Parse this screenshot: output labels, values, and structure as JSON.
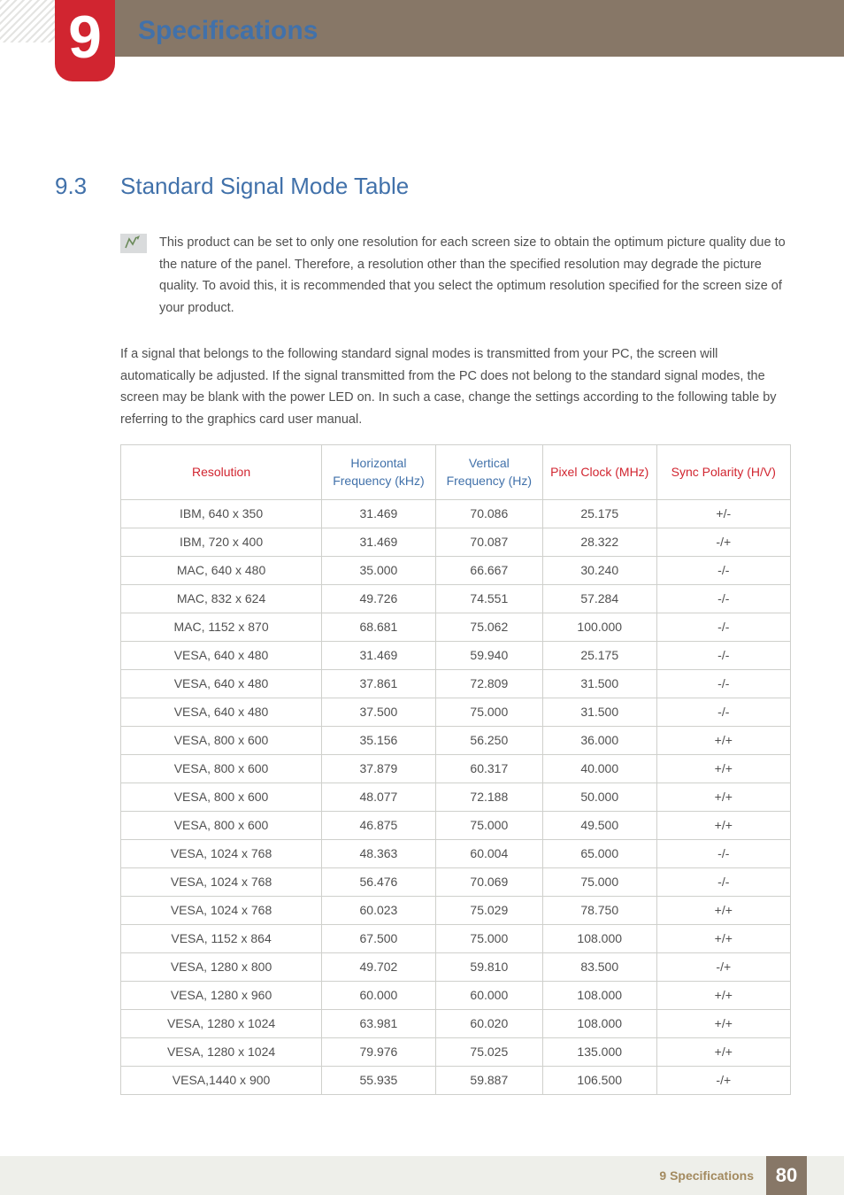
{
  "chapter": {
    "number": "9",
    "title": "Specifications"
  },
  "section": {
    "number": "9.3",
    "title": "Standard Signal Mode Table"
  },
  "note": {
    "text": "This product can be set to only one resolution for each screen size to obtain the optimum picture quality due to the nature of the panel. Therefore, a resolution other than the specified resolution may degrade the picture quality. To avoid this, it is recommended that you select the optimum resolution specified for the screen size of your product."
  },
  "body_paragraph": "If a signal that belongs to the following standard signal modes is transmitted from your PC, the screen will automatically be adjusted. If the signal transmitted from the PC does not belong to the standard signal modes, the screen may be blank with the power LED on. In such a case, change the settings according to the following table by referring to the graphics card user manual.",
  "table": {
    "headers": {
      "resolution": "Resolution",
      "hfreq": "Horizontal Frequency (kHz)",
      "vfreq": "Vertical Frequency (Hz)",
      "pclock": "Pixel Clock (MHz)",
      "sync": "Sync Polarity (H/V)"
    },
    "header_colors": {
      "resolution": "#d12530",
      "hfreq": "#4171aa",
      "vfreq": "#4171aa",
      "pclock": "#d12530",
      "sync": "#d12530"
    },
    "rows": [
      {
        "r": "IBM, 640 x 350",
        "h": "31.469",
        "v": "70.086",
        "p": "25.175",
        "s": "+/-"
      },
      {
        "r": "IBM, 720 x 400",
        "h": "31.469",
        "v": "70.087",
        "p": "28.322",
        "s": "-/+"
      },
      {
        "r": "MAC, 640 x 480",
        "h": "35.000",
        "v": "66.667",
        "p": "30.240",
        "s": "-/-"
      },
      {
        "r": "MAC, 832 x 624",
        "h": "49.726",
        "v": "74.551",
        "p": "57.284",
        "s": "-/-"
      },
      {
        "r": "MAC, 1152 x 870",
        "h": "68.681",
        "v": "75.062",
        "p": "100.000",
        "s": "-/-"
      },
      {
        "r": "VESA, 640 x 480",
        "h": "31.469",
        "v": "59.940",
        "p": "25.175",
        "s": "-/-"
      },
      {
        "r": "VESA, 640 x 480",
        "h": "37.861",
        "v": "72.809",
        "p": "31.500",
        "s": "-/-"
      },
      {
        "r": "VESA, 640 x 480",
        "h": "37.500",
        "v": "75.000",
        "p": "31.500",
        "s": "-/-"
      },
      {
        "r": "VESA, 800 x 600",
        "h": "35.156",
        "v": "56.250",
        "p": "36.000",
        "s": "+/+"
      },
      {
        "r": "VESA, 800 x 600",
        "h": "37.879",
        "v": "60.317",
        "p": "40.000",
        "s": "+/+"
      },
      {
        "r": "VESA, 800 x 600",
        "h": "48.077",
        "v": "72.188",
        "p": "50.000",
        "s": "+/+"
      },
      {
        "r": "VESA, 800 x 600",
        "h": "46.875",
        "v": "75.000",
        "p": "49.500",
        "s": "+/+"
      },
      {
        "r": "VESA, 1024 x 768",
        "h": "48.363",
        "v": "60.004",
        "p": "65.000",
        "s": "-/-"
      },
      {
        "r": "VESA, 1024 x 768",
        "h": "56.476",
        "v": "70.069",
        "p": "75.000",
        "s": "-/-"
      },
      {
        "r": "VESA, 1024 x 768",
        "h": "60.023",
        "v": "75.029",
        "p": "78.750",
        "s": "+/+"
      },
      {
        "r": "VESA, 1152 x 864",
        "h": "67.500",
        "v": "75.000",
        "p": "108.000",
        "s": "+/+"
      },
      {
        "r": "VESA, 1280 x 800",
        "h": "49.702",
        "v": "59.810",
        "p": "83.500",
        "s": "-/+"
      },
      {
        "r": "VESA, 1280 x 960",
        "h": "60.000",
        "v": "60.000",
        "p": "108.000",
        "s": "+/+"
      },
      {
        "r": "VESA, 1280 x 1024",
        "h": "63.981",
        "v": "60.020",
        "p": "108.000",
        "s": "+/+"
      },
      {
        "r": "VESA, 1280 x 1024",
        "h": "79.976",
        "v": "75.025",
        "p": "135.000",
        "s": "+/+"
      },
      {
        "r": "VESA,1440 x 900",
        "h": "55.935",
        "v": "59.887",
        "p": "106.500",
        "s": "-/+"
      }
    ]
  },
  "footer": {
    "text": "9 Specifications",
    "page": "80"
  },
  "colors": {
    "accent_red": "#d12530",
    "accent_blue": "#4171aa",
    "header_brown": "#877767",
    "footer_bg": "#eeefea",
    "footer_text": "#a38a5f",
    "body_text": "#505050",
    "table_border": "#cfd0cc"
  }
}
